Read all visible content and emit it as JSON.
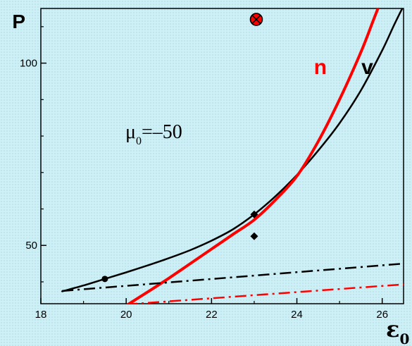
{
  "chart_data": {
    "type": "line",
    "xlabel_main": "ε",
    "xlabel_sub": "0",
    "ylabel": "P",
    "xlim": [
      18,
      26.5
    ],
    "ylim": [
      34,
      115
    ],
    "xticks": [
      18,
      20,
      22,
      24,
      26
    ],
    "yticks": [
      50,
      100
    ],
    "annotation": {
      "main": "μ",
      "sub": "0",
      "rest": "=–50"
    },
    "curve_labels": [
      {
        "text": "n",
        "color": "#ff0000",
        "x": 24.55,
        "y": 97
      },
      {
        "text": "v",
        "color": "#000000",
        "x": 25.65,
        "y": 97
      }
    ],
    "series": [
      {
        "label": "v",
        "color": "#000000",
        "style": "solid",
        "points": [
          [
            18.5,
            37.4
          ],
          [
            19.0,
            39.0
          ],
          [
            19.5,
            40.8
          ],
          [
            20.0,
            42.6
          ],
          [
            20.5,
            44.5
          ],
          [
            21.0,
            46.5
          ],
          [
            21.5,
            48.7
          ],
          [
            22.0,
            51.3
          ],
          [
            22.5,
            54.4
          ],
          [
            23.0,
            58.5
          ],
          [
            23.5,
            63.5
          ],
          [
            24.0,
            69.3
          ],
          [
            24.5,
            76.0
          ],
          [
            25.0,
            83.5
          ],
          [
            25.5,
            92.5
          ],
          [
            26.0,
            103.5
          ],
          [
            26.3,
            111.0
          ],
          [
            26.6,
            118.0
          ]
        ]
      },
      {
        "label": "n",
        "color": "#ff0000",
        "style": "solid",
        "points": [
          [
            20.0,
            33.5
          ],
          [
            20.5,
            37.2
          ],
          [
            21.0,
            41.0
          ],
          [
            21.5,
            45.0
          ],
          [
            22.0,
            49.0
          ],
          [
            22.5,
            53.0
          ],
          [
            23.0,
            57.0
          ],
          [
            23.5,
            62.5
          ],
          [
            24.0,
            69.0
          ],
          [
            24.5,
            78.5
          ],
          [
            25.0,
            90.0
          ],
          [
            25.5,
            103.0
          ],
          [
            25.8,
            112.0
          ],
          [
            26.0,
            118.0
          ]
        ]
      },
      {
        "label": "",
        "color": "#000000",
        "style": "dashdot",
        "points": [
          [
            18.5,
            37.5
          ],
          [
            26.5,
            45.0
          ]
        ]
      },
      {
        "label": "",
        "color": "#ff0000",
        "style": "dashdot",
        "points": [
          [
            20.0,
            33.8
          ],
          [
            26.5,
            39.3
          ]
        ]
      }
    ],
    "markers": [
      {
        "shape": "circle",
        "color": "#000000",
        "x": 19.5,
        "y": 40.8
      },
      {
        "shape": "diamond",
        "color": "#000000",
        "x": 23.0,
        "y": 58.5
      },
      {
        "shape": "diamond",
        "color": "#000000",
        "x": 23.0,
        "y": 52.5
      },
      {
        "shape": "crossed-circle",
        "color": "#ff0000",
        "x": 23.05,
        "y": 112.0
      }
    ]
  }
}
